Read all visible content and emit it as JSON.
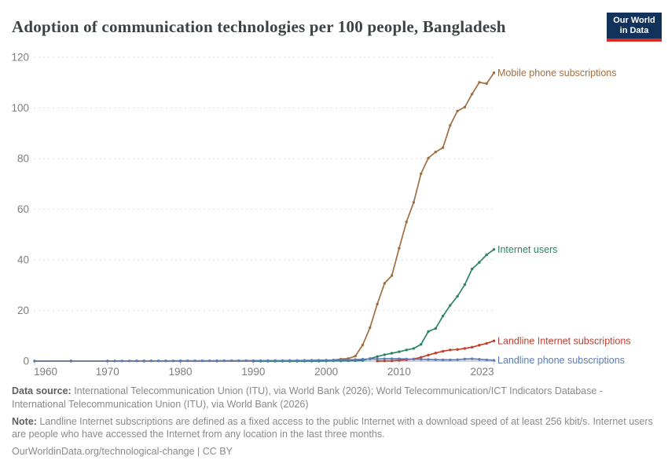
{
  "header": {
    "title": "Adoption of communication technologies per 100 people, Bangladesh"
  },
  "logo": {
    "line1": "Our World",
    "line2": "in Data",
    "bg_color": "#12325b",
    "accent_color": "#d92a23"
  },
  "chart_data": {
    "type": "line",
    "title": "Adoption of communication technologies per 100 people, Bangladesh",
    "xlabel": "",
    "ylabel": "",
    "x_range": [
      1960,
      2023
    ],
    "y_range": [
      0,
      120
    ],
    "x_ticks": [
      1960,
      1970,
      1980,
      1990,
      2000,
      2010,
      2023
    ],
    "y_ticks": [
      0,
      20,
      40,
      60,
      80,
      100,
      120
    ],
    "grid": "dashed-horizontal",
    "legend_position": "end-of-line-labels",
    "series": [
      {
        "name": "Mobile phone subscriptions",
        "slug": "mobile-phone-subscriptions",
        "color": "#a06e42",
        "points": [
          [
            1960,
            0
          ],
          [
            1965,
            0
          ],
          [
            1970,
            0
          ],
          [
            1975,
            0
          ],
          [
            1980,
            0
          ],
          [
            1985,
            0
          ],
          [
            1990,
            0
          ],
          [
            1991,
            0
          ],
          [
            1992,
            0
          ],
          [
            1993,
            0
          ],
          [
            1994,
            0
          ],
          [
            1995,
            0
          ],
          [
            1996,
            0.01
          ],
          [
            1997,
            0.03
          ],
          [
            1998,
            0.07
          ],
          [
            1999,
            0.14
          ],
          [
            2000,
            0.21
          ],
          [
            2001,
            0.4
          ],
          [
            2002,
            0.8
          ],
          [
            2003,
            1.0
          ],
          [
            2004,
            2.0
          ],
          [
            2005,
            6.4
          ],
          [
            2006,
            13.2
          ],
          [
            2007,
            22.5
          ],
          [
            2008,
            30.7
          ],
          [
            2009,
            33.8
          ],
          [
            2010,
            44.6
          ],
          [
            2011,
            55.0
          ],
          [
            2012,
            62.7
          ],
          [
            2013,
            74.0
          ],
          [
            2014,
            80.2
          ],
          [
            2015,
            82.6
          ],
          [
            2016,
            84.3
          ],
          [
            2017,
            93.1
          ],
          [
            2018,
            98.8
          ],
          [
            2019,
            100.3
          ],
          [
            2020,
            105.5
          ],
          [
            2021,
            110.1
          ],
          [
            2022,
            109.6
          ],
          [
            2023,
            113.9
          ]
        ]
      },
      {
        "name": "Internet users",
        "slug": "internet-users",
        "color": "#2c8465",
        "points": [
          [
            1990,
            0
          ],
          [
            1991,
            0
          ],
          [
            1992,
            0
          ],
          [
            1993,
            0
          ],
          [
            1994,
            0
          ],
          [
            1995,
            0
          ],
          [
            1996,
            0
          ],
          [
            1997,
            0
          ],
          [
            1998,
            0
          ],
          [
            1999,
            0
          ],
          [
            2000,
            0.07
          ],
          [
            2001,
            0.1
          ],
          [
            2002,
            0.1
          ],
          [
            2003,
            0.16
          ],
          [
            2004,
            0.2
          ],
          [
            2005,
            0.24
          ],
          [
            2006,
            1.0
          ],
          [
            2007,
            1.8
          ],
          [
            2008,
            2.5
          ],
          [
            2009,
            3.1
          ],
          [
            2010,
            3.7
          ],
          [
            2011,
            4.4
          ],
          [
            2012,
            5.0
          ],
          [
            2013,
            6.6
          ],
          [
            2014,
            11.7
          ],
          [
            2015,
            12.9
          ],
          [
            2016,
            17.8
          ],
          [
            2017,
            22.0
          ],
          [
            2018,
            25.6
          ],
          [
            2019,
            30.2
          ],
          [
            2020,
            36.4
          ],
          [
            2021,
            39.0
          ],
          [
            2022,
            42.0
          ],
          [
            2023,
            44.1
          ]
        ]
      },
      {
        "name": "Landline Internet subscriptions",
        "slug": "landline-internet-subscriptions",
        "color": "#c23e2b",
        "points": [
          [
            2007,
            0.03
          ],
          [
            2008,
            0.06
          ],
          [
            2009,
            0.1
          ],
          [
            2010,
            0.31
          ],
          [
            2011,
            0.52
          ],
          [
            2012,
            0.83
          ],
          [
            2013,
            1.5
          ],
          [
            2014,
            2.4
          ],
          [
            2015,
            3.2
          ],
          [
            2016,
            3.9
          ],
          [
            2017,
            4.4
          ],
          [
            2018,
            4.6
          ],
          [
            2019,
            5.0
          ],
          [
            2020,
            5.5
          ],
          [
            2021,
            6.3
          ],
          [
            2022,
            7.0
          ],
          [
            2023,
            8.0
          ]
        ]
      },
      {
        "name": "Landline phone subscriptions",
        "slug": "landline-phone-subscriptions",
        "color": "#5b7cb8",
        "points": [
          [
            1960,
            0.04
          ],
          [
            1965,
            0.05
          ],
          [
            1970,
            0.06
          ],
          [
            1971,
            0.065
          ],
          [
            1972,
            0.07
          ],
          [
            1973,
            0.075
          ],
          [
            1974,
            0.08
          ],
          [
            1975,
            0.085
          ],
          [
            1976,
            0.09
          ],
          [
            1977,
            0.095
          ],
          [
            1978,
            0.1
          ],
          [
            1979,
            0.105
          ],
          [
            1980,
            0.11
          ],
          [
            1981,
            0.115
          ],
          [
            1982,
            0.12
          ],
          [
            1983,
            0.125
          ],
          [
            1984,
            0.13
          ],
          [
            1985,
            0.14
          ],
          [
            1986,
            0.15
          ],
          [
            1987,
            0.16
          ],
          [
            1988,
            0.17
          ],
          [
            1989,
            0.18
          ],
          [
            1990,
            0.2
          ],
          [
            1991,
            0.2
          ],
          [
            1992,
            0.21
          ],
          [
            1993,
            0.22
          ],
          [
            1994,
            0.23
          ],
          [
            1995,
            0.24
          ],
          [
            1996,
            0.26
          ],
          [
            1997,
            0.28
          ],
          [
            1998,
            0.3
          ],
          [
            1999,
            0.33
          ],
          [
            2000,
            0.36
          ],
          [
            2001,
            0.4
          ],
          [
            2002,
            0.45
          ],
          [
            2003,
            0.52
          ],
          [
            2004,
            0.6
          ],
          [
            2005,
            0.74
          ],
          [
            2006,
            0.8
          ],
          [
            2007,
            0.8
          ],
          [
            2008,
            0.9
          ],
          [
            2009,
            0.9
          ],
          [
            2010,
            0.9
          ],
          [
            2011,
            0.85
          ],
          [
            2012,
            0.75
          ],
          [
            2013,
            0.7
          ],
          [
            2014,
            0.65
          ],
          [
            2015,
            0.55
          ],
          [
            2016,
            0.5
          ],
          [
            2017,
            0.5
          ],
          [
            2018,
            0.55
          ],
          [
            2019,
            0.8
          ],
          [
            2020,
            0.9
          ],
          [
            2021,
            0.7
          ],
          [
            2022,
            0.5
          ],
          [
            2023,
            0.35
          ]
        ]
      }
    ]
  },
  "footer": {
    "data_source_label": "Data source:",
    "data_source_text": " International Telecommunication Union (ITU), via World Bank (2026); World Telecommunication/ICT Indicators Database - International Telecommunication Union (ITU), via World Bank (2026)",
    "note_label": "Note:",
    "note_text": " Landline Internet subscriptions are defined as a fixed access to the public Internet with a download speed of at least 256 kbit/s. Internet users are people who have accessed the Internet from any location in the last three months.",
    "link_text": "OurWorldinData.org/technological-change | CC BY"
  },
  "colors": {
    "title": "#3d4247",
    "axis_text": "#7e7e7e",
    "gridline": "#dedede",
    "zero_line": "#c9c9c9",
    "footer_text": "#8a8a8a"
  }
}
